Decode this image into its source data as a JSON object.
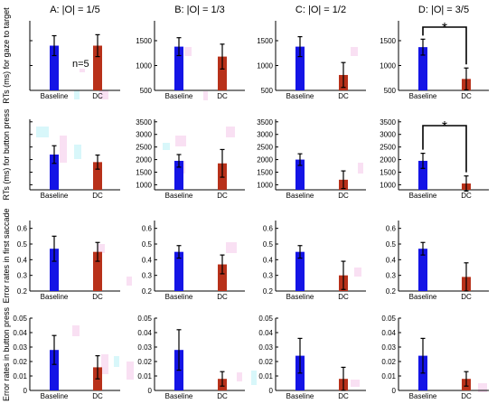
{
  "annotations": {
    "n_label": "n=5",
    "significance_marker": "*",
    "significance_color": "#e8502f"
  },
  "colors": {
    "baseline": "#1414e6",
    "dc": "#b8311a",
    "error_bar": "#000000",
    "axis": "#000000",
    "artifact_pink": "#f4c6ea",
    "artifact_cyan": "#b8f0f6"
  },
  "chart_data": [
    {
      "type": "bar",
      "title": "A: |O| = 1/5",
      "ylabel": "RTs (ms) for gaze to target",
      "categories": [
        "Baseline",
        "DC"
      ],
      "values": [
        1400,
        1400
      ],
      "errors": [
        200,
        220
      ],
      "ylim": [
        500,
        1900
      ],
      "yticks": [
        500,
        1000,
        1500
      ],
      "ytick_labels": [
        "",
        "",
        ""
      ]
    },
    {
      "type": "bar",
      "title": "B: |O| = 1/3",
      "ylabel": "",
      "categories": [
        "Baseline",
        "DC"
      ],
      "values": [
        1380,
        1180
      ],
      "errors": [
        180,
        250
      ],
      "ylim": [
        500,
        1900
      ],
      "yticks": [
        500,
        1000,
        1500
      ],
      "ytick_labels": [
        "500",
        "1000",
        "1500"
      ]
    },
    {
      "type": "bar",
      "title": "C: |O| = 1/2",
      "ylabel": "",
      "categories": [
        "Baseline",
        "DC"
      ],
      "values": [
        1380,
        810
      ],
      "errors": [
        200,
        250
      ],
      "ylim": [
        500,
        1900
      ],
      "yticks": [
        500,
        1000,
        1500
      ],
      "ytick_labels": [
        "500",
        "1000",
        "1500"
      ]
    },
    {
      "type": "bar",
      "title": "D: |O| = 3/5",
      "ylabel": "",
      "categories": [
        "Baseline",
        "DC"
      ],
      "values": [
        1370,
        730
      ],
      "errors": [
        160,
        220
      ],
      "ylim": [
        500,
        1900
      ],
      "yticks": [
        500,
        1000,
        1500
      ],
      "ytick_labels": [
        "500",
        "1000",
        "1500"
      ],
      "significance": true
    },
    {
      "type": "bar",
      "title": "",
      "ylabel": "RTs (ms) for button press",
      "categories": [
        "Baseline",
        "DC"
      ],
      "values": [
        2200,
        1900
      ],
      "errors": [
        350,
        280
      ],
      "ylim": [
        800,
        3600
      ],
      "yticks": [
        1000,
        1500,
        2000,
        2500,
        3000,
        3500
      ],
      "ytick_labels": [
        "",
        "",
        "",
        "",
        "",
        ""
      ]
    },
    {
      "type": "bar",
      "title": "",
      "ylabel": "",
      "categories": [
        "Baseline",
        "DC"
      ],
      "values": [
        1950,
        1850
      ],
      "errors": [
        250,
        550
      ],
      "ylim": [
        800,
        3600
      ],
      "yticks": [
        1000,
        1500,
        2000,
        2500,
        3000,
        3500
      ],
      "ytick_labels": [
        "1000",
        "1500",
        "2000",
        "2500",
        "3000",
        "3500"
      ]
    },
    {
      "type": "bar",
      "title": "",
      "ylabel": "",
      "categories": [
        "Baseline",
        "DC"
      ],
      "values": [
        2000,
        1200
      ],
      "errors": [
        230,
        350
      ],
      "ylim": [
        800,
        3600
      ],
      "yticks": [
        1000,
        1500,
        2000,
        2500,
        3000,
        3500
      ],
      "ytick_labels": [
        "1000",
        "1500",
        "2000",
        "2500",
        "3000",
        "3500"
      ]
    },
    {
      "type": "bar",
      "title": "",
      "ylabel": "",
      "categories": [
        "Baseline",
        "DC"
      ],
      "values": [
        1950,
        1050
      ],
      "errors": [
        300,
        300
      ],
      "ylim": [
        800,
        3600
      ],
      "yticks": [
        1000,
        1500,
        2000,
        2500,
        3000,
        3500
      ],
      "ytick_labels": [
        "1000",
        "1500",
        "2000",
        "2500",
        "3000",
        "3500"
      ],
      "significance": true
    },
    {
      "type": "bar",
      "title": "",
      "ylabel": "Error rates in first saccade",
      "categories": [
        "Baseline",
        "DC"
      ],
      "values": [
        0.47,
        0.45
      ],
      "errors": [
        0.08,
        0.06
      ],
      "ylim": [
        0.2,
        0.65
      ],
      "yticks": [
        0.2,
        0.3,
        0.4,
        0.5,
        0.6
      ],
      "ytick_labels": [
        "0.2",
        "0.3",
        "0.4",
        "0.5",
        "0.6"
      ]
    },
    {
      "type": "bar",
      "title": "",
      "ylabel": "",
      "categories": [
        "Baseline",
        "DC"
      ],
      "values": [
        0.45,
        0.37
      ],
      "errors": [
        0.04,
        0.06
      ],
      "ylim": [
        0.2,
        0.65
      ],
      "yticks": [
        0.2,
        0.3,
        0.4,
        0.5,
        0.6
      ],
      "ytick_labels": [
        "0.2",
        "0.3",
        "0.4",
        "0.5",
        "0.6"
      ]
    },
    {
      "type": "bar",
      "title": "",
      "ylabel": "",
      "categories": [
        "Baseline",
        "DC"
      ],
      "values": [
        0.45,
        0.3
      ],
      "errors": [
        0.04,
        0.09
      ],
      "ylim": [
        0.2,
        0.65
      ],
      "yticks": [
        0.2,
        0.3,
        0.4,
        0.5,
        0.6
      ],
      "ytick_labels": [
        "0.2",
        "0.3",
        "0.4",
        "0.5",
        "0.6"
      ]
    },
    {
      "type": "bar",
      "title": "",
      "ylabel": "",
      "categories": [
        "Baseline",
        "DC"
      ],
      "values": [
        0.47,
        0.29
      ],
      "errors": [
        0.04,
        0.09
      ],
      "ylim": [
        0.2,
        0.65
      ],
      "yticks": [
        0.2,
        0.3,
        0.4,
        0.5,
        0.6
      ],
      "ytick_labels": [
        "0.2",
        "0.3",
        "0.4",
        "0.5",
        "0.6"
      ]
    },
    {
      "type": "bar",
      "title": "",
      "ylabel": "Error rates in button press",
      "categories": [
        "Baseline",
        "DC"
      ],
      "values": [
        0.028,
        0.016
      ],
      "errors": [
        0.01,
        0.008
      ],
      "ylim": [
        0,
        0.05
      ],
      "yticks": [
        0,
        0.01,
        0.02,
        0.03,
        0.04,
        0.05
      ],
      "ytick_labels": [
        "0",
        "0.01",
        "0.02",
        "0.03",
        "0.04",
        "0.05"
      ]
    },
    {
      "type": "bar",
      "title": "",
      "ylabel": "",
      "categories": [
        "Baseline",
        "DC"
      ],
      "values": [
        0.028,
        0.008
      ],
      "errors": [
        0.014,
        0.005
      ],
      "ylim": [
        0,
        0.05
      ],
      "yticks": [
        0,
        0.01,
        0.02,
        0.03,
        0.04,
        0.05
      ],
      "ytick_labels": [
        "0",
        "0.01",
        "0.02",
        "0.03",
        "0.04",
        "0.05"
      ]
    },
    {
      "type": "bar",
      "title": "",
      "ylabel": "",
      "categories": [
        "Baseline",
        "DC"
      ],
      "values": [
        0.024,
        0.008
      ],
      "errors": [
        0.012,
        0.008
      ],
      "ylim": [
        0,
        0.05
      ],
      "yticks": [
        0,
        0.01,
        0.02,
        0.03,
        0.04,
        0.05
      ],
      "ytick_labels": [
        "0",
        "0.01",
        "0.02",
        "0.03",
        "0.04",
        "0.05"
      ]
    },
    {
      "type": "bar",
      "title": "",
      "ylabel": "",
      "categories": [
        "Baseline",
        "DC"
      ],
      "values": [
        0.024,
        0.008
      ],
      "errors": [
        0.012,
        0.005
      ],
      "ylim": [
        0,
        0.05
      ],
      "yticks": [
        0,
        0.01,
        0.02,
        0.03,
        0.04,
        0.05
      ],
      "ytick_labels": [
        "0",
        "0.01",
        "0.02",
        "0.03",
        "0.04",
        "0.05"
      ]
    }
  ]
}
